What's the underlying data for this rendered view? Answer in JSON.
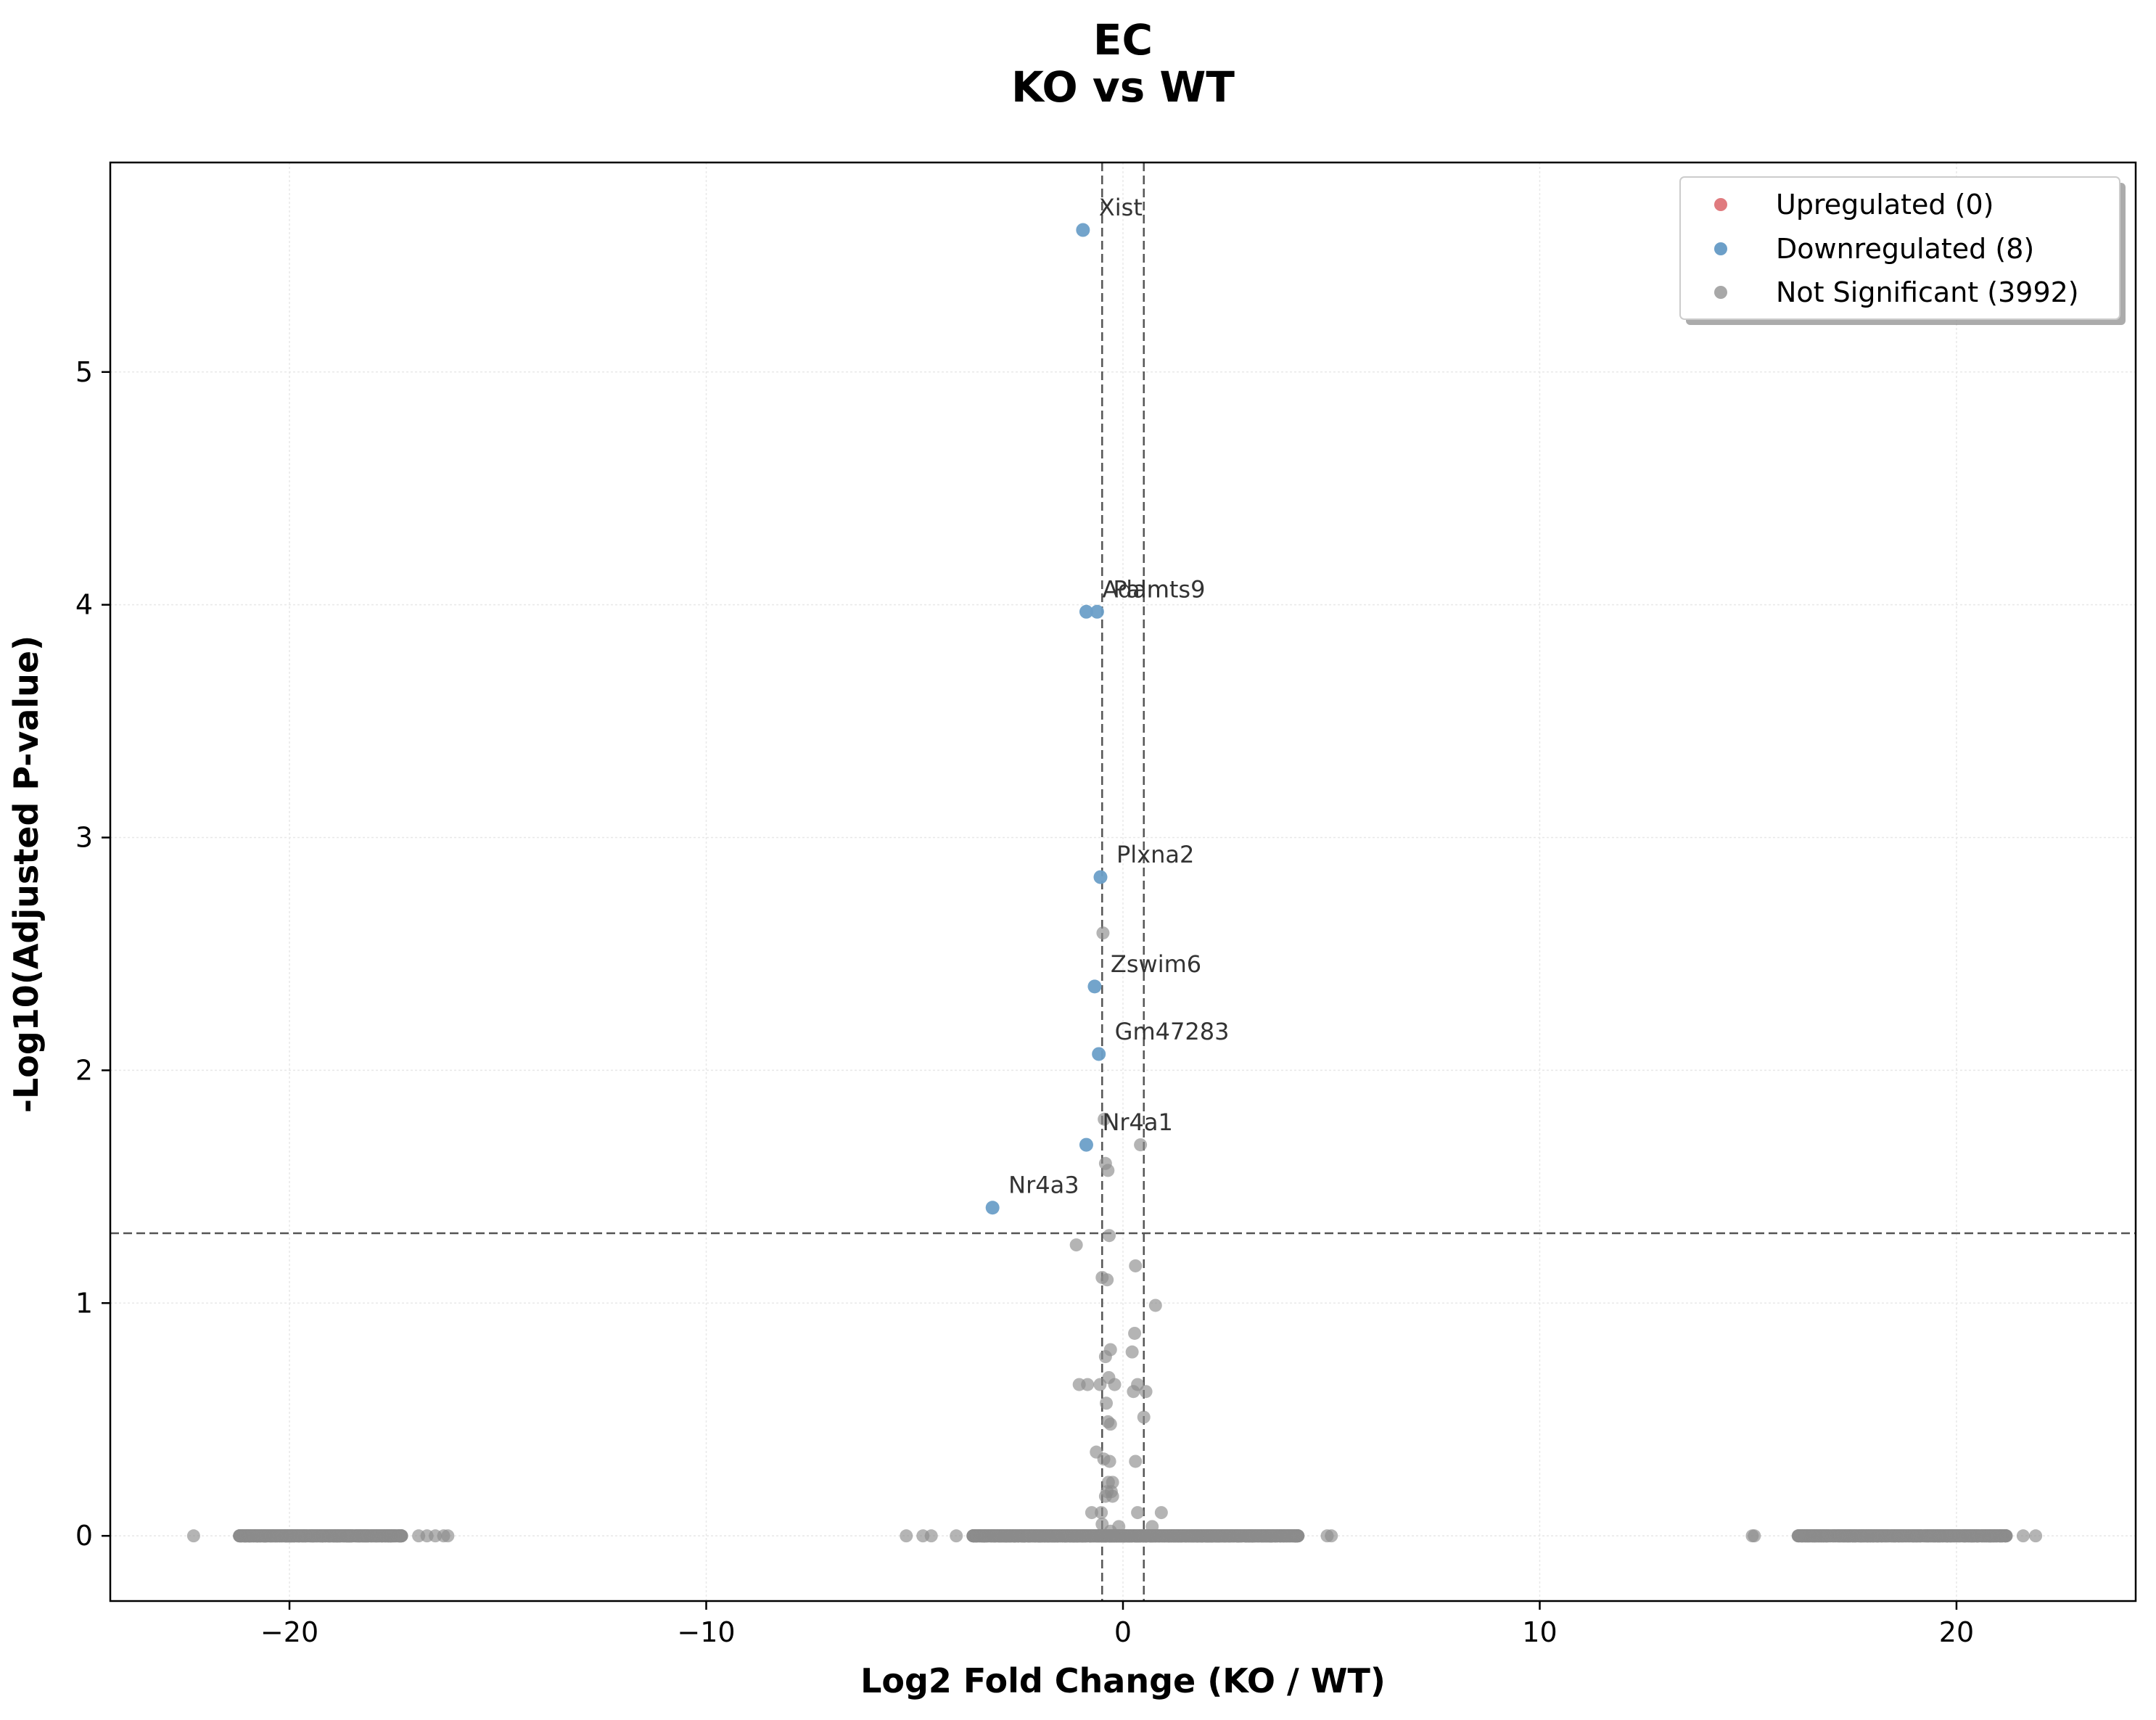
{
  "chart_data": {
    "type": "scatter",
    "title": [
      "EC",
      "KO vs WT"
    ],
    "xlabel": "Log2 Fold Change (KO / WT)",
    "ylabel": "-Log10(Adjusted P-value)",
    "xlim": [
      -24.3,
      24.3
    ],
    "ylim": [
      -0.28,
      5.9
    ],
    "xticks": [
      -20,
      -10,
      0,
      10,
      20
    ],
    "xtick_labels": [
      "−20",
      "−10",
      "0",
      "10",
      "20"
    ],
    "yticks": [
      0,
      1,
      2,
      3,
      4,
      5
    ],
    "ytick_labels": [
      "0",
      "1",
      "2",
      "3",
      "4",
      "5"
    ],
    "grid": true,
    "legend_position": "top-right",
    "thresholds": {
      "log2fc": [
        -0.5,
        0.5
      ],
      "neg_log10_padj": 1.3
    },
    "colors": {
      "upregulated": "#e07b7f",
      "downregulated": "#6c9fc8",
      "not_significant": "#8c8c8c",
      "threshold_line": "#555555",
      "grid": "#e8e8e8"
    },
    "legend": [
      {
        "label": "Upregulated (0)",
        "color": "#e07b7f"
      },
      {
        "label": "Downregulated (8)",
        "color": "#6c9fc8"
      },
      {
        "label": "Not Significant (3992)",
        "color": "#a8a8a8"
      }
    ],
    "downregulated_points": [
      {
        "gene": "Xist",
        "x": -0.96,
        "y": 5.61
      },
      {
        "gene": "Adamts9",
        "x": -0.88,
        "y": 3.97
      },
      {
        "gene": "Palm",
        "x": -0.62,
        "y": 3.97
      },
      {
        "gene": "Plxna2",
        "x": -0.54,
        "y": 2.83
      },
      {
        "gene": "Zswim6",
        "x": -0.68,
        "y": 2.36
      },
      {
        "gene": "Gm47283",
        "x": -0.58,
        "y": 2.07
      },
      {
        "gene": "Nr4a1",
        "x": -0.88,
        "y": 1.68
      },
      {
        "gene": "Nr4a3",
        "x": -3.13,
        "y": 1.41
      }
    ],
    "gene_label_text": {
      "Xist": "Xist",
      "Adamts9": "Adamts9",
      "Palm": "Palm",
      "Plxna2": "Plxna2",
      "Zswim6": "Zswim6",
      "Gm47283": "Gm47283",
      "Nr4a1": "Nr4a1",
      "Nr4a3": "Nr4a3"
    },
    "not_significant_points": [
      [
        -0.48,
        2.59
      ],
      [
        -0.45,
        1.79
      ],
      [
        0.42,
        1.68
      ],
      [
        -0.42,
        1.6
      ],
      [
        -0.36,
        1.57
      ],
      [
        -1.12,
        1.25
      ],
      [
        -0.33,
        1.29
      ],
      [
        0.3,
        1.16
      ],
      [
        -0.5,
        1.11
      ],
      [
        -0.38,
        1.1
      ],
      [
        0.78,
        0.99
      ],
      [
        0.28,
        0.87
      ],
      [
        -0.3,
        0.8
      ],
      [
        0.22,
        0.79
      ],
      [
        -0.42,
        0.77
      ],
      [
        -0.34,
        0.68
      ],
      [
        -1.05,
        0.65
      ],
      [
        -0.85,
        0.65
      ],
      [
        -0.55,
        0.65
      ],
      [
        -0.2,
        0.65
      ],
      [
        0.35,
        0.65
      ],
      [
        0.55,
        0.62
      ],
      [
        0.25,
        0.62
      ],
      [
        -0.4,
        0.57
      ],
      [
        0.5,
        0.51
      ],
      [
        -0.36,
        0.49
      ],
      [
        -0.3,
        0.48
      ],
      [
        -0.64,
        0.36
      ],
      [
        -0.46,
        0.33
      ],
      [
        -0.32,
        0.32
      ],
      [
        0.3,
        0.32
      ],
      [
        -0.35,
        0.23
      ],
      [
        -0.25,
        0.23
      ],
      [
        -0.38,
        0.19
      ],
      [
        -0.28,
        0.19
      ],
      [
        -0.42,
        0.17
      ],
      [
        -0.25,
        0.17
      ],
      [
        -0.75,
        0.1
      ],
      [
        -0.52,
        0.1
      ],
      [
        0.35,
        0.1
      ],
      [
        0.92,
        0.1
      ],
      [
        -0.5,
        0.05
      ],
      [
        -0.1,
        0.04
      ],
      [
        0.7,
        0.04
      ],
      [
        -0.3,
        0.02
      ]
    ],
    "zero_band": {
      "y": 0,
      "ranges": [
        {
          "from": -21.2,
          "to": -17.3,
          "count": 600
        },
        {
          "from": -3.6,
          "to": 4.2,
          "count": 1900
        },
        {
          "from": 16.2,
          "to": 21.2,
          "count": 700
        }
      ],
      "outliers_x": [
        -22.3,
        -16.9,
        -16.7,
        -16.5,
        -16.3,
        -16.2,
        -5.2,
        -4.8,
        -4.6,
        -4.0,
        4.9,
        5.0,
        15.1,
        15.15,
        21.6,
        21.9
      ]
    }
  }
}
